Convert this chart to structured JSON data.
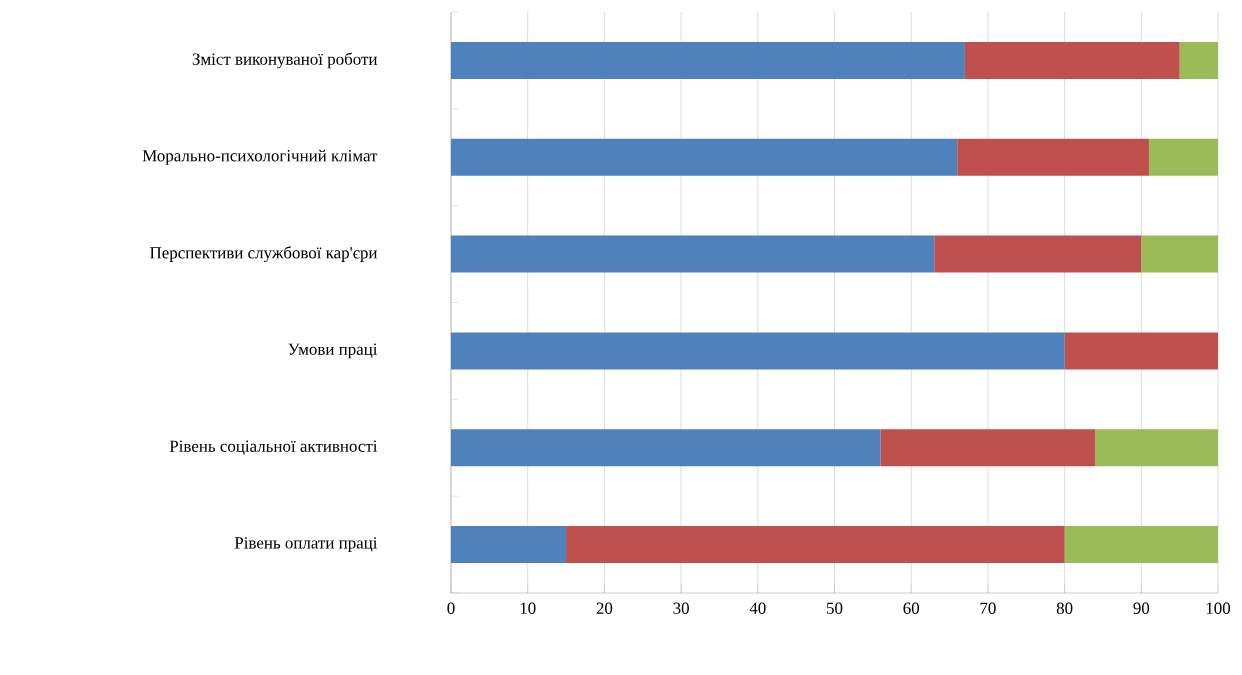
{
  "chart_data": {
    "type": "bar",
    "orientation": "horizontal",
    "stacked": true,
    "categories": [
      "Зміст виконуваної роботи",
      "Морально-психологічний  клімат",
      "Перспективи  службової кар'єри",
      "Умови праці",
      "Рівень соціальної активності",
      "Рівень оплати праці"
    ],
    "series": [
      {
        "color": "#4f81bd",
        "values": [
          67,
          66,
          63,
          80,
          56,
          15
        ]
      },
      {
        "color": "#c0504d",
        "values": [
          28,
          25,
          27,
          20,
          28,
          65
        ]
      },
      {
        "color": "#9bbb59",
        "values": [
          5,
          9,
          10,
          0,
          16,
          20
        ]
      }
    ],
    "xlim": [
      0,
      100
    ],
    "xticks": [
      0,
      10,
      20,
      30,
      40,
      50,
      60,
      70,
      80,
      90,
      100
    ],
    "grid": "x"
  }
}
